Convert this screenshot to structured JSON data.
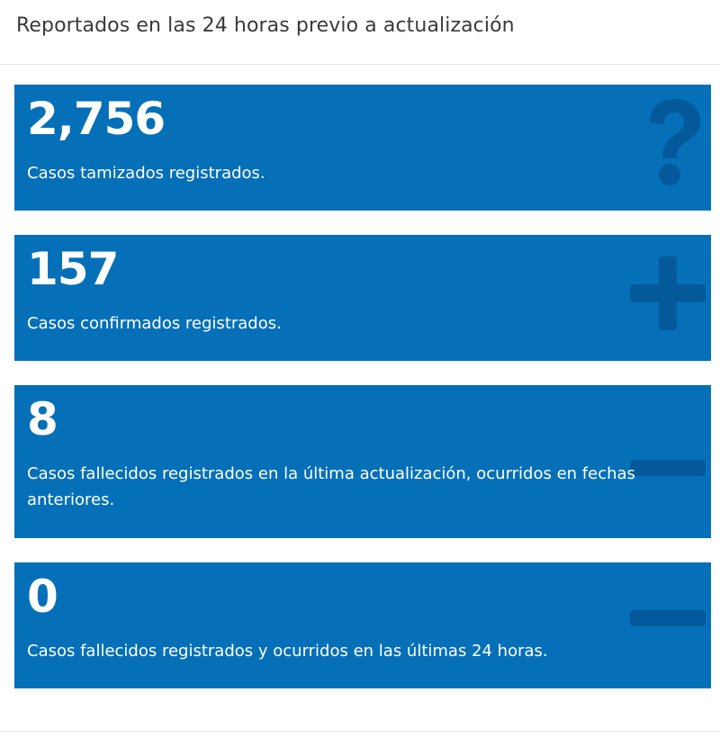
{
  "header": {
    "title": "Reportados en las 24 horas previo a actualización"
  },
  "cards": [
    {
      "value": "2,756",
      "description": "Casos tamizados registrados.",
      "icon": "question-icon"
    },
    {
      "value": "157",
      "description": "Casos confirmados registrados.",
      "icon": "plus-icon"
    },
    {
      "value": "8",
      "description": "Casos fallecidos registrados en la última actualización, ocurridos en fechas anteriores.",
      "icon": "minus-icon"
    },
    {
      "value": "0",
      "description": "Casos fallecidos registrados y ocurridos en las últimas 24 horas.",
      "icon": "minus-icon"
    }
  ],
  "colors": {
    "card_background": "#0570b8",
    "icon": "#04599a",
    "text": "#ffffff"
  }
}
